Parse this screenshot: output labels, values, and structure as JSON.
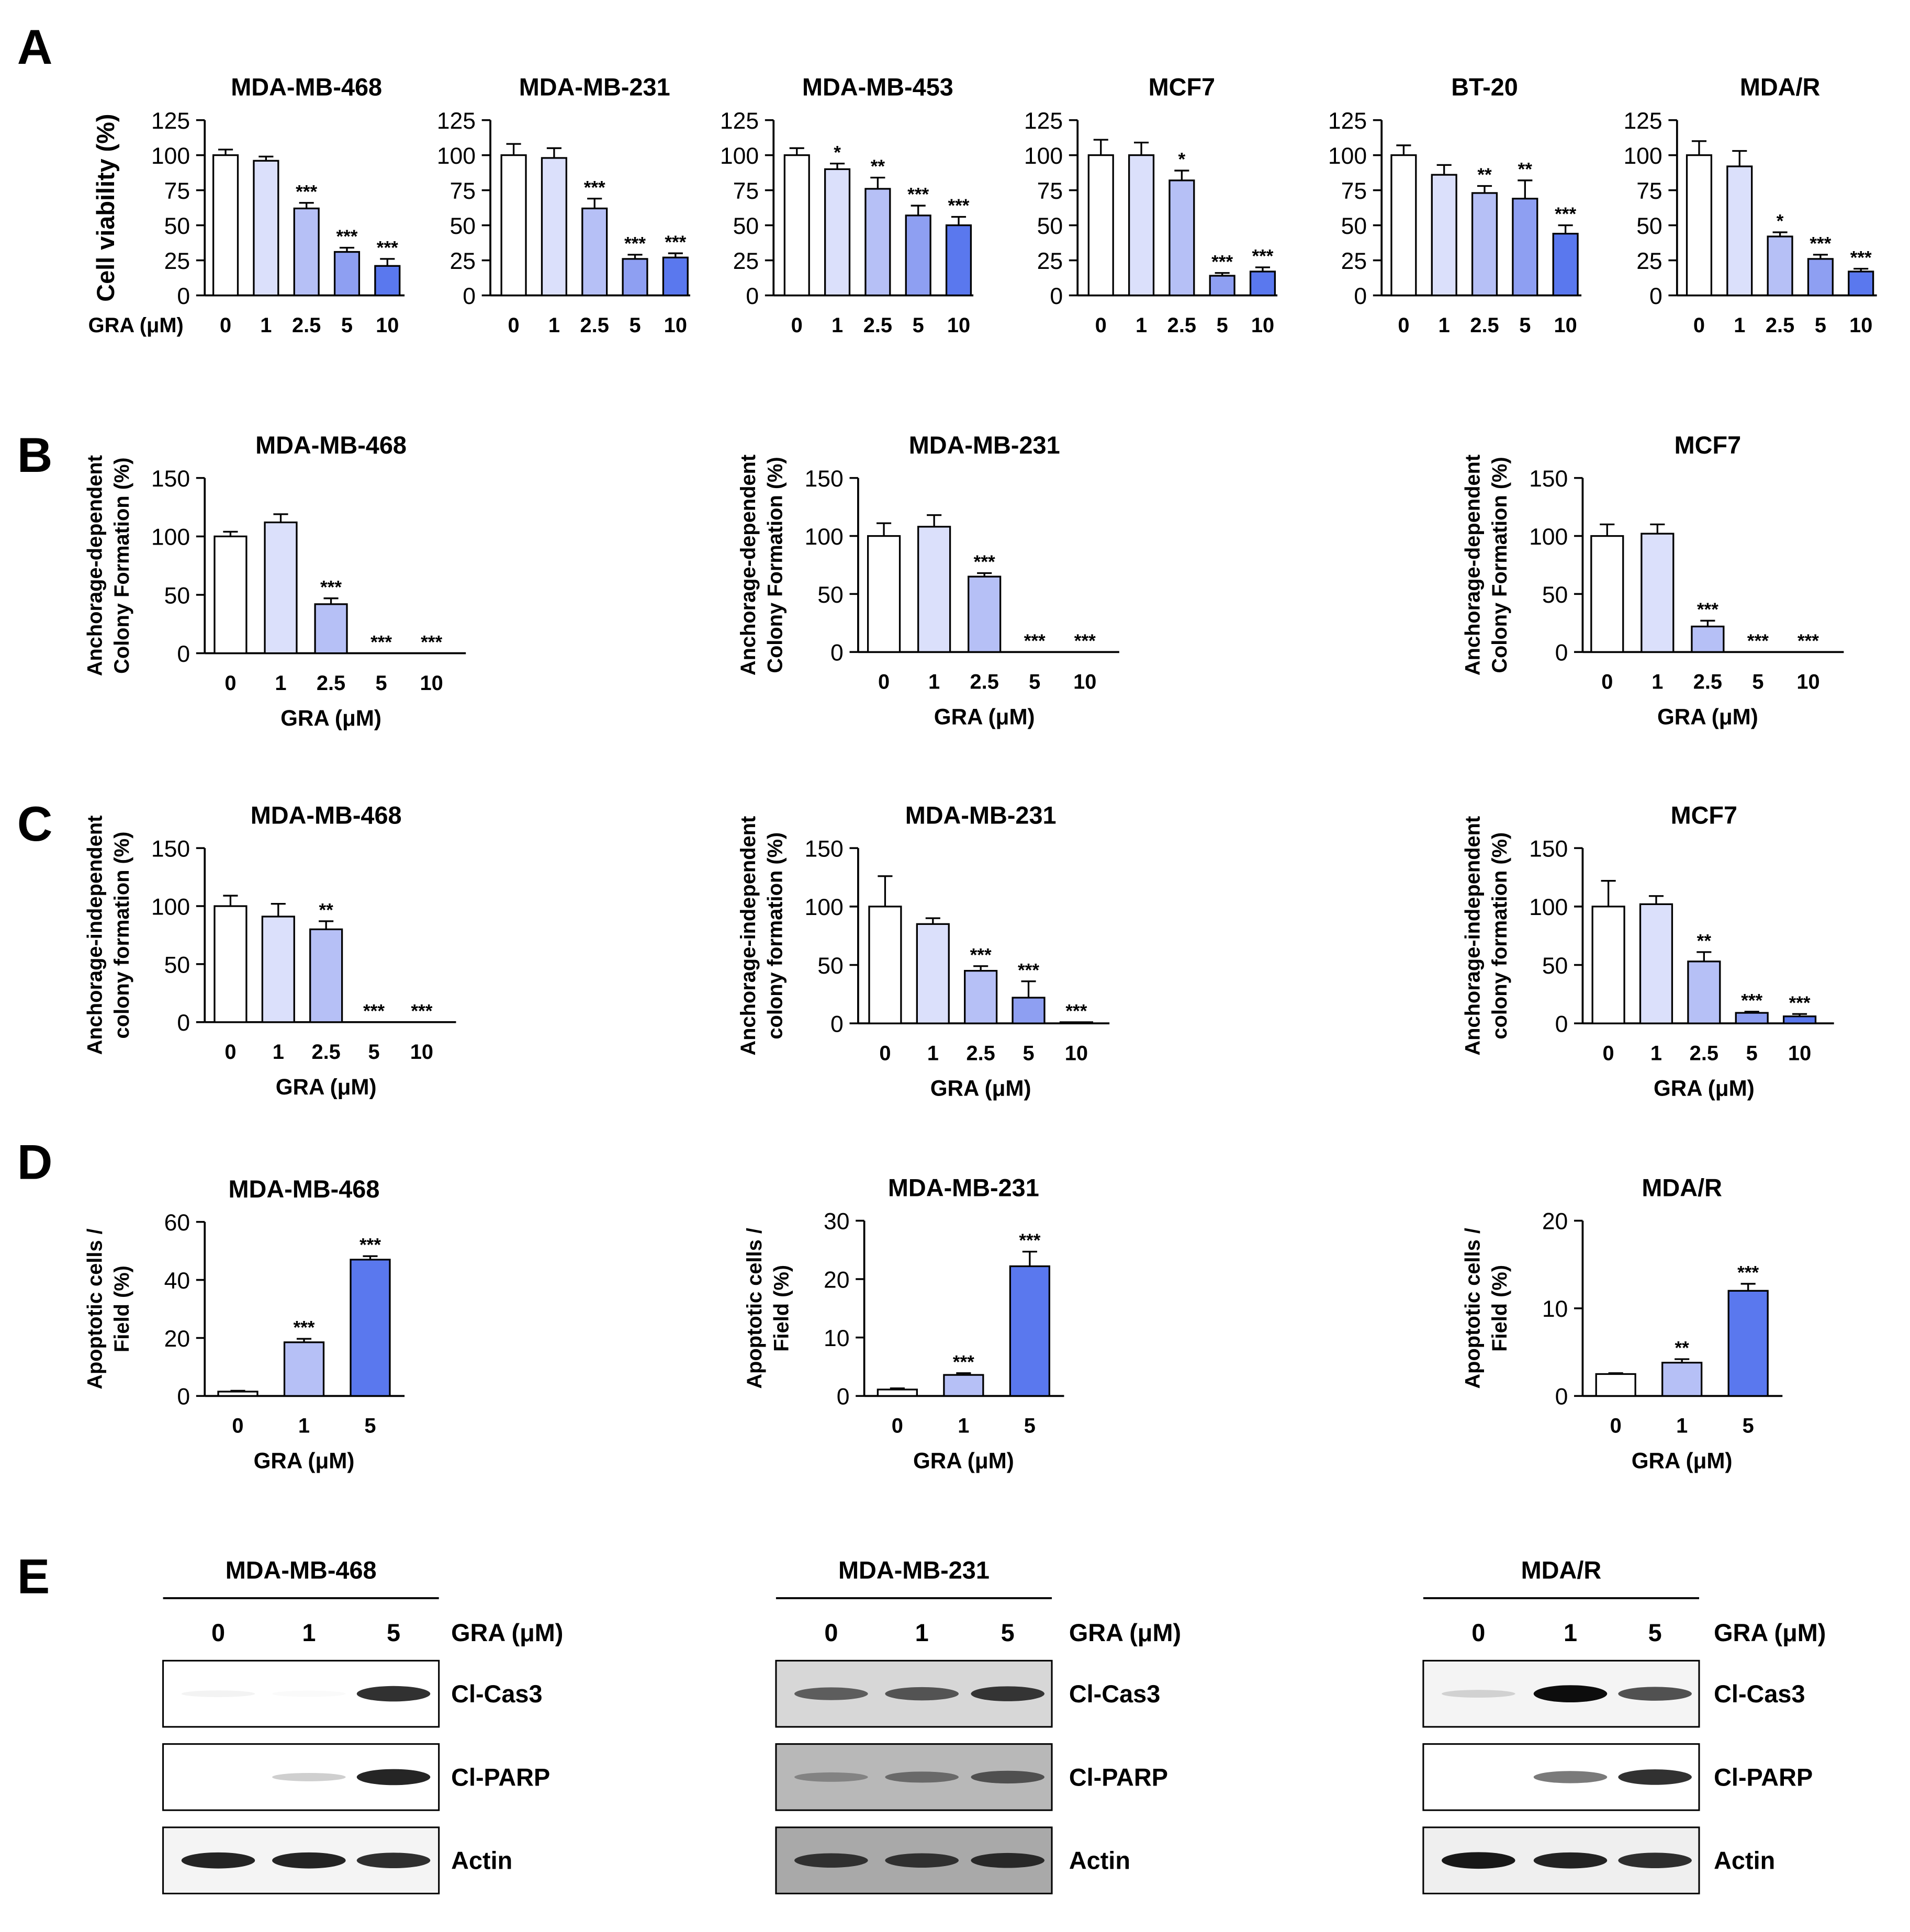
{
  "colors": {
    "c0": "#ffffff",
    "c1": "#dbe0fb",
    "c2": "#b6c0f6",
    "c3": "#8e9ff2",
    "c4": "#5a78ee",
    "axis": "#000000"
  },
  "panel_letters": [
    "A",
    "B",
    "C",
    "D",
    "E"
  ],
  "chart_data": [
    {
      "panel": "A",
      "type": "bar",
      "title": "MDA-MB-468",
      "ylabel": [
        "Cell viability (%)"
      ],
      "xlabel": "",
      "x_prefix": "GRA (μM)",
      "categories": [
        "0",
        "1",
        "2.5",
        "5",
        "10"
      ],
      "values": [
        100,
        96,
        62,
        31,
        21
      ],
      "errors": [
        4,
        3,
        4,
        3,
        5
      ],
      "sig": [
        "",
        "",
        "***",
        "***",
        "***"
      ],
      "ylim": [
        0,
        125
      ],
      "yticks": [
        0,
        25,
        50,
        75,
        100,
        125
      ]
    },
    {
      "panel": "A",
      "type": "bar",
      "title": "MDA-MB-231",
      "ylabel": [],
      "xlabel": "",
      "categories": [
        "0",
        "1",
        "2.5",
        "5",
        "10"
      ],
      "values": [
        100,
        98,
        62,
        26,
        27
      ],
      "errors": [
        8,
        7,
        7,
        3,
        3
      ],
      "sig": [
        "",
        "",
        "***",
        "***",
        "***"
      ],
      "ylim": [
        0,
        125
      ],
      "yticks": [
        0,
        25,
        50,
        75,
        100,
        125
      ]
    },
    {
      "panel": "A",
      "type": "bar",
      "title": "MDA-MB-453",
      "ylabel": [],
      "xlabel": "",
      "categories": [
        "0",
        "1",
        "2.5",
        "5",
        "10"
      ],
      "values": [
        100,
        90,
        76,
        57,
        50
      ],
      "errors": [
        5,
        4,
        8,
        7,
        6
      ],
      "sig": [
        "",
        "*",
        "**",
        "***",
        "***"
      ],
      "ylim": [
        0,
        125
      ],
      "yticks": [
        0,
        25,
        50,
        75,
        100,
        125
      ]
    },
    {
      "panel": "A",
      "type": "bar",
      "title": "MCF7",
      "ylabel": [],
      "xlabel": "",
      "categories": [
        "0",
        "1",
        "2.5",
        "5",
        "10"
      ],
      "values": [
        100,
        100,
        82,
        14,
        17
      ],
      "errors": [
        11,
        9,
        7,
        2,
        3
      ],
      "sig": [
        "",
        "",
        "*",
        "***",
        "***"
      ],
      "ylim": [
        0,
        125
      ],
      "yticks": [
        0,
        25,
        50,
        75,
        100,
        125
      ]
    },
    {
      "panel": "A",
      "type": "bar",
      "title": "BT-20",
      "ylabel": [],
      "xlabel": "",
      "categories": [
        "0",
        "1",
        "2.5",
        "5",
        "10"
      ],
      "values": [
        100,
        86,
        73,
        69,
        44
      ],
      "errors": [
        7,
        7,
        5,
        13,
        6
      ],
      "sig": [
        "",
        "",
        "**",
        "**",
        "***"
      ],
      "ylim": [
        0,
        125
      ],
      "yticks": [
        0,
        25,
        50,
        75,
        100,
        125
      ]
    },
    {
      "panel": "A",
      "type": "bar",
      "title": "MDA/R",
      "ylabel": [],
      "xlabel": "",
      "categories": [
        "0",
        "1",
        "2.5",
        "5",
        "10"
      ],
      "values": [
        100,
        92,
        42,
        26,
        17
      ],
      "errors": [
        10,
        11,
        3,
        3,
        2
      ],
      "sig": [
        "",
        "",
        "*",
        "***",
        "***"
      ],
      "ylim": [
        0,
        125
      ],
      "yticks": [
        0,
        25,
        50,
        75,
        100,
        125
      ]
    },
    {
      "panel": "B",
      "type": "bar",
      "title": "MDA-MB-468",
      "ylabel": [
        "Anchorage-dependent",
        "Colony Formation (%)"
      ],
      "xlabel": "GRA (μM)",
      "categories": [
        "0",
        "1",
        "2.5",
        "5",
        "10"
      ],
      "values": [
        100,
        112,
        42,
        0,
        0
      ],
      "errors": [
        4,
        7,
        5,
        0,
        0
      ],
      "sig": [
        "",
        "",
        "***",
        "***",
        "***"
      ],
      "ylim": [
        0,
        150
      ],
      "yticks": [
        0,
        50,
        100,
        150
      ]
    },
    {
      "panel": "B",
      "type": "bar",
      "title": "MDA-MB-231",
      "ylabel": [
        "Anchorage-dependent",
        "Colony Formation (%)"
      ],
      "xlabel": "GRA (μM)",
      "categories": [
        "0",
        "1",
        "2.5",
        "5",
        "10"
      ],
      "values": [
        100,
        108,
        65,
        0,
        0
      ],
      "errors": [
        11,
        10,
        3,
        0,
        0
      ],
      "sig": [
        "",
        "",
        "***",
        "***",
        "***"
      ],
      "ylim": [
        0,
        150
      ],
      "yticks": [
        0,
        50,
        100,
        150
      ]
    },
    {
      "panel": "B",
      "type": "bar",
      "title": "MCF7",
      "ylabel": [
        "Anchorage-dependent",
        "Colony Formation (%)"
      ],
      "xlabel": "GRA (μM)",
      "categories": [
        "0",
        "1",
        "2.5",
        "5",
        "10"
      ],
      "values": [
        100,
        102,
        22,
        0,
        0
      ],
      "errors": [
        10,
        8,
        5,
        0,
        0
      ],
      "sig": [
        "",
        "",
        "***",
        "***",
        "***"
      ],
      "ylim": [
        0,
        150
      ],
      "yticks": [
        0,
        50,
        100,
        150
      ]
    },
    {
      "panel": "C",
      "type": "bar",
      "title": "MDA-MB-468",
      "ylabel": [
        "Anchorage-independent",
        "colony formation (%)"
      ],
      "xlabel": "GRA (μM)",
      "categories": [
        "0",
        "1",
        "2.5",
        "5",
        "10"
      ],
      "values": [
        100,
        91,
        80,
        0,
        0
      ],
      "errors": [
        9,
        11,
        7,
        0,
        0
      ],
      "sig": [
        "",
        "",
        "**",
        "***",
        "***"
      ],
      "ylim": [
        0,
        150
      ],
      "yticks": [
        0,
        50,
        100,
        150
      ]
    },
    {
      "panel": "C",
      "type": "bar",
      "title": "MDA-MB-231",
      "ylabel": [
        "Anchorage-independent",
        "colony formation (%)"
      ],
      "xlabel": "GRA (μM)",
      "categories": [
        "0",
        "1",
        "2.5",
        "5",
        "10"
      ],
      "values": [
        100,
        85,
        45,
        22,
        1
      ],
      "errors": [
        26,
        5,
        4,
        14,
        0
      ],
      "sig": [
        "",
        "",
        "***",
        "***",
        "***"
      ],
      "ylim": [
        0,
        150
      ],
      "yticks": [
        0,
        50,
        100,
        150
      ]
    },
    {
      "panel": "C",
      "type": "bar",
      "title": "MCF7",
      "ylabel": [
        "Anchorage-independent",
        "colony formation (%)"
      ],
      "xlabel": "GRA (μM)",
      "categories": [
        "0",
        "1",
        "2.5",
        "5",
        "10"
      ],
      "values": [
        100,
        102,
        53,
        9,
        6
      ],
      "errors": [
        22,
        7,
        8,
        1,
        2
      ],
      "sig": [
        "",
        "",
        "**",
        "***",
        "***"
      ],
      "ylim": [
        0,
        150
      ],
      "yticks": [
        0,
        50,
        100,
        150
      ]
    },
    {
      "panel": "D",
      "type": "bar",
      "title": "MDA-MB-468",
      "ylabel": [
        "Apoptotic cells /",
        "Field (%)"
      ],
      "xlabel": "GRA (μM)",
      "categories": [
        "0",
        "1",
        "5"
      ],
      "values": [
        1.5,
        18.5,
        47
      ],
      "errors": [
        0.3,
        1.2,
        1.2
      ],
      "sig": [
        "",
        "***",
        "***"
      ],
      "ylim": [
        0,
        60
      ],
      "yticks": [
        0,
        20,
        40,
        60
      ]
    },
    {
      "panel": "D",
      "type": "bar",
      "title": "MDA-MB-231",
      "ylabel": [
        "Apoptotic cells /",
        "Field (%)"
      ],
      "xlabel": "GRA (μM)",
      "categories": [
        "0",
        "1",
        "5"
      ],
      "values": [
        1.1,
        3.6,
        22.2
      ],
      "errors": [
        0.2,
        0.3,
        2.5
      ],
      "sig": [
        "",
        "***",
        "***"
      ],
      "ylim": [
        0,
        30
      ],
      "yticks": [
        0,
        10,
        20,
        30
      ]
    },
    {
      "panel": "D",
      "type": "bar",
      "title": "MDA/R",
      "ylabel": [
        "Apoptotic cells /",
        "Field (%)"
      ],
      "xlabel": "GRA (μM)",
      "categories": [
        "0",
        "1",
        "5"
      ],
      "values": [
        2.5,
        3.8,
        12
      ],
      "errors": [
        0.1,
        0.4,
        0.8
      ],
      "sig": [
        "",
        "**",
        "***"
      ],
      "ylim": [
        0,
        20
      ],
      "yticks": [
        0,
        10,
        20
      ]
    }
  ],
  "blots": [
    {
      "title": "MDA-MB-468",
      "dose_label": "GRA (μM)",
      "lanes": [
        "0",
        "1",
        "5"
      ],
      "bands": [
        {
          "label": "Cl-Cas3",
          "bg": "#ffffff",
          "intensity": [
            0.05,
            0.02,
            0.85
          ]
        },
        {
          "label": "Cl-PARP",
          "bg": "#ffffff",
          "intensity": [
            0.0,
            0.2,
            0.9
          ]
        },
        {
          "label": "Actin",
          "bg": "#f4f4f4",
          "intensity": [
            0.9,
            0.9,
            0.85
          ]
        }
      ]
    },
    {
      "title": "MDA-MB-231",
      "dose_label": "GRA (μM)",
      "lanes": [
        "0",
        "1",
        "5"
      ],
      "bands": [
        {
          "label": "Cl-Cas3",
          "bg": "#d7d7d7",
          "intensity": [
            0.6,
            0.65,
            0.8
          ]
        },
        {
          "label": "Cl-PARP",
          "bg": "#b8b8b8",
          "intensity": [
            0.3,
            0.45,
            0.6
          ]
        },
        {
          "label": "Actin",
          "bg": "#a9a9a9",
          "intensity": [
            0.75,
            0.75,
            0.8
          ]
        }
      ]
    },
    {
      "title": "MDA/R",
      "dose_label": "GRA (μM)",
      "lanes": [
        "0",
        "1",
        "5"
      ],
      "bands": [
        {
          "label": "Cl-Cas3",
          "bg": "#f4f4f4",
          "intensity": [
            0.15,
            1.0,
            0.7
          ]
        },
        {
          "label": "Cl-PARP",
          "bg": "#ffffff",
          "intensity": [
            0.0,
            0.55,
            0.85
          ]
        },
        {
          "label": "Actin",
          "bg": "#efefef",
          "intensity": [
            0.95,
            0.9,
            0.85
          ]
        }
      ]
    }
  ]
}
